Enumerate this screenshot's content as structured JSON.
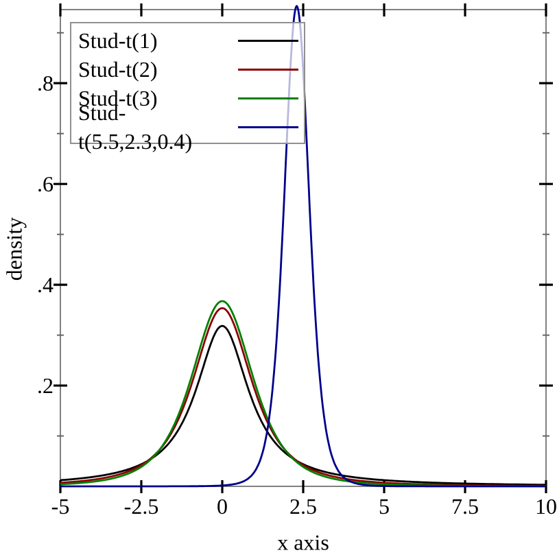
{
  "figure": {
    "background": "#ffffff",
    "axis_border_color": "#808080",
    "major_tick_color": "#000000",
    "minor_tick_color": "#666666",
    "text_color": "#000000",
    "legend_border_color": "#909090",
    "legend_background": "rgba(255,255,255,0.72)"
  },
  "chart_data": {
    "type": "line",
    "title": "",
    "xlabel": "x axis",
    "ylabel": "density",
    "xlim": [
      -5,
      10
    ],
    "ylim": [
      0,
      0.946
    ],
    "grid": false,
    "legend_position": "top-left",
    "x_ticks": {
      "values": [
        -5,
        -2.5,
        0,
        2.5,
        5,
        7.5,
        10
      ],
      "labels": [
        "-5",
        "-2.5",
        "0",
        "2.5",
        "5",
        "7.5",
        "10"
      ]
    },
    "y_ticks": {
      "values": [
        0.2,
        0.4,
        0.6,
        0.8
      ],
      "labels": [
        ".2",
        ".4",
        ".6",
        ".8"
      ],
      "minor_values": [
        0.1,
        0.3,
        0.5,
        0.7,
        0.9
      ]
    },
    "series": [
      {
        "name": "Stud-t(1)",
        "distribution": "student_t",
        "df": 1,
        "location": 0,
        "scale": 1,
        "norm_const": 0.3183099,
        "peak": {
          "x": 0,
          "density": 0.3183
        },
        "color": "#000000"
      },
      {
        "name": "Stud-t(2)",
        "distribution": "student_t",
        "df": 2,
        "location": 0,
        "scale": 1,
        "norm_const": 0.3535534,
        "peak": {
          "x": 0,
          "density": 0.3536
        },
        "color": "#8b0000"
      },
      {
        "name": "Stud-t(3)",
        "distribution": "student_t",
        "df": 3,
        "location": 0,
        "scale": 1,
        "norm_const": 0.3675526,
        "peak": {
          "x": 0,
          "density": 0.3676
        },
        "color": "#008000"
      },
      {
        "name": "Stud-t(5.5,2.3,0.4)",
        "distribution": "student_t",
        "df": 5.5,
        "location": 2.3,
        "scale": 0.4,
        "norm_const": 0.3812857,
        "peak": {
          "x": 2.3,
          "density": 0.9532
        },
        "color": "#00008b"
      }
    ]
  }
}
